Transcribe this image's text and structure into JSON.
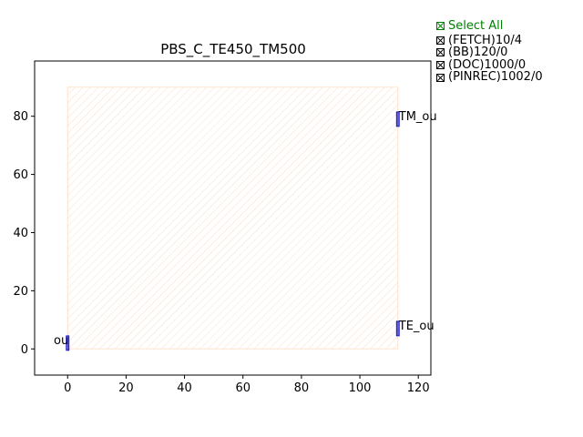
{
  "chart_data": {
    "type": "scatter",
    "title": "PBS_C_TE450_TM500",
    "xlabel": "",
    "ylabel": "",
    "xlim": [
      -11.3,
      124.3
    ],
    "ylim": [
      -9,
      99
    ],
    "xticks": [
      0,
      20,
      40,
      60,
      80,
      100,
      120
    ],
    "yticks": [
      0,
      20,
      40,
      60,
      80
    ],
    "grid": false,
    "region": {
      "x": [
        0,
        113
      ],
      "y": [
        0,
        90
      ],
      "color": "#f4a460"
    },
    "ports": [
      {
        "label": "TM_ou",
        "x": 113,
        "y": 79
      },
      {
        "label": "TE_ou",
        "x": 113,
        "y": 7
      },
      {
        "label": "ou",
        "x": 0,
        "y": 2
      }
    ],
    "port_color": "#0000cd",
    "legend_placement": "top-right, outside plot"
  },
  "legend": {
    "select_all": "Select All",
    "items": [
      "(FETCH)10/4",
      "(BB)120/0",
      "(DOC)1000/0",
      "(PINREC)1002/0"
    ]
  }
}
